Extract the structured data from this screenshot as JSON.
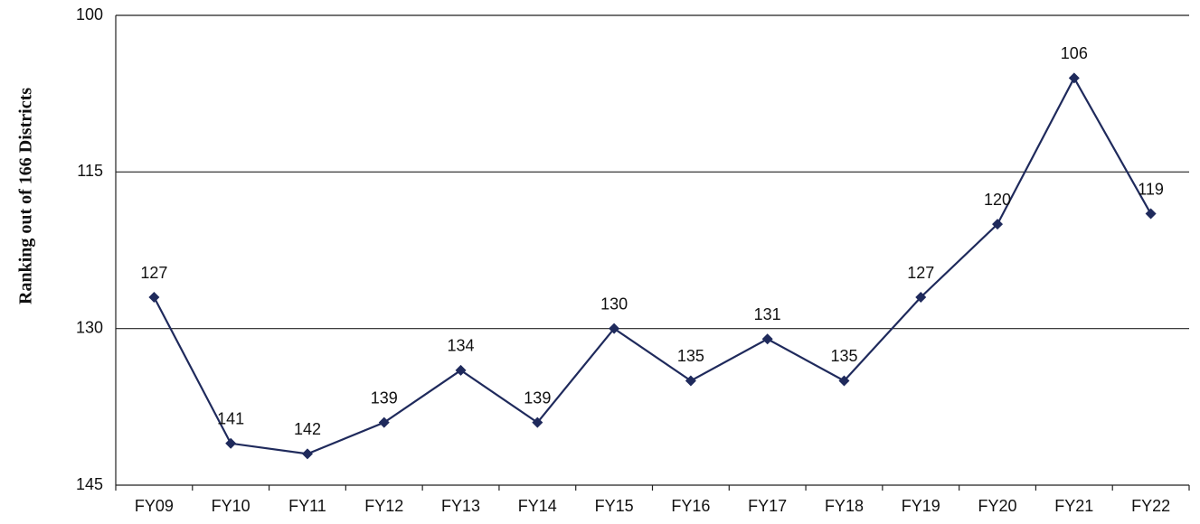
{
  "chart_data": {
    "type": "line",
    "y_label": "Ranking out of 166 Districts",
    "categories": [
      "FY09",
      "FY10",
      "FY11",
      "FY12",
      "FY13",
      "FY14",
      "FY15",
      "FY16",
      "FY17",
      "FY18",
      "FY19",
      "FY20",
      "FY21",
      "FY22"
    ],
    "values": [
      127,
      141,
      142,
      139,
      134,
      139,
      130,
      135,
      131,
      135,
      127,
      120,
      106,
      119
    ],
    "color": "#1f2a5c",
    "ylim": [
      145,
      100
    ],
    "yticks": [
      100,
      115,
      130,
      145
    ],
    "grid": true
  }
}
